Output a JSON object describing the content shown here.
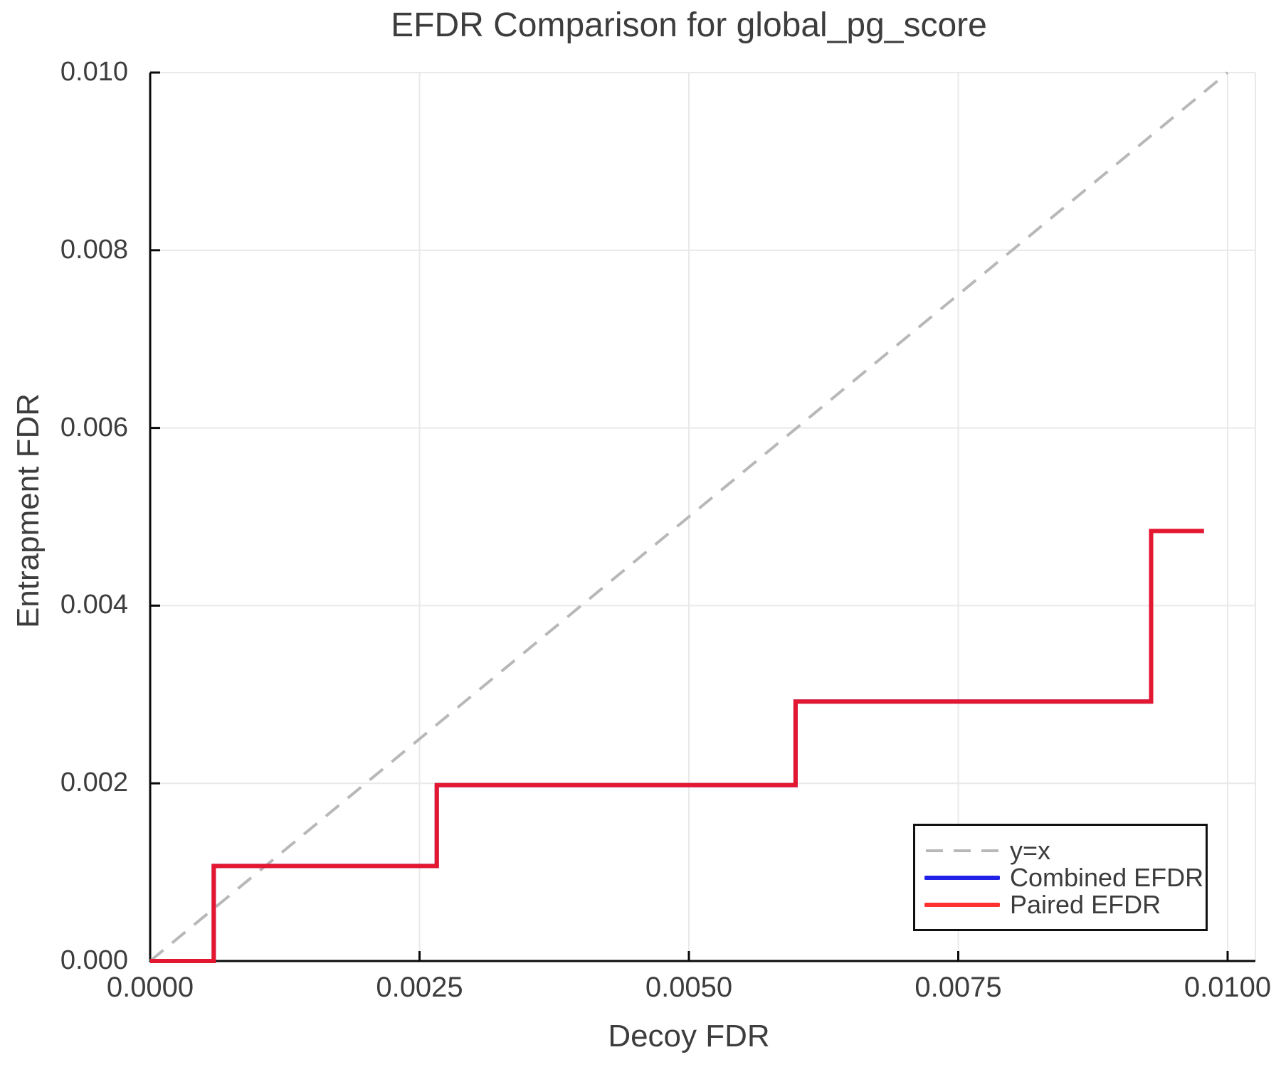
{
  "chart_data": {
    "type": "line",
    "title": "EFDR Comparison for global_pg_score",
    "xlabel": "Decoy FDR",
    "ylabel": "Entrapment FDR",
    "xlim": [
      0.0,
      0.01
    ],
    "ylim": [
      0.0,
      0.01
    ],
    "grid": true,
    "legend_position": "lower right",
    "x_ticks": {
      "values": [
        0.0,
        0.0025,
        0.005,
        0.0075,
        0.01
      ],
      "labels": [
        "0.0000",
        "0.0025",
        "0.0050",
        "0.0075",
        "0.0100"
      ]
    },
    "y_ticks": {
      "values": [
        0.0,
        0.002,
        0.004,
        0.006,
        0.008,
        0.01
      ],
      "labels": [
        "0.000",
        "0.002",
        "0.004",
        "0.006",
        "0.008",
        "0.010"
      ]
    },
    "series": [
      {
        "name": "y=x",
        "style": "dashed",
        "color": "#b8b8b8",
        "width": 4,
        "opacity": 1,
        "x": [
          0.0,
          0.01
        ],
        "y": [
          0.0,
          0.01
        ]
      },
      {
        "name": "Combined EFDR",
        "style": "solid",
        "color": "#2121e8",
        "width": 6,
        "opacity": 1,
        "x": [
          0.0,
          0.00059,
          0.00059,
          0.00266,
          0.00266,
          0.00599,
          0.00599,
          0.00929,
          0.00929,
          0.00978
        ],
        "y": [
          0.0,
          0.0,
          0.00107,
          0.00107,
          0.00198,
          0.00198,
          0.00292,
          0.00292,
          0.00484,
          0.00484
        ]
      },
      {
        "name": "Paired EFDR",
        "style": "solid",
        "color": "#ff1616",
        "width": 6,
        "opacity": 0.88,
        "x": [
          0.0,
          0.00059,
          0.00059,
          0.00266,
          0.00266,
          0.00599,
          0.00599,
          0.00929,
          0.00929,
          0.00978
        ],
        "y": [
          0.0,
          0.0,
          0.00107,
          0.00107,
          0.00198,
          0.00198,
          0.00292,
          0.00292,
          0.00484,
          0.00484
        ]
      }
    ],
    "colors": {
      "grid": "#e9e9e9",
      "spine": "#0a0a0a",
      "text": "#3d3d3d",
      "legend_border": "#111111"
    }
  }
}
